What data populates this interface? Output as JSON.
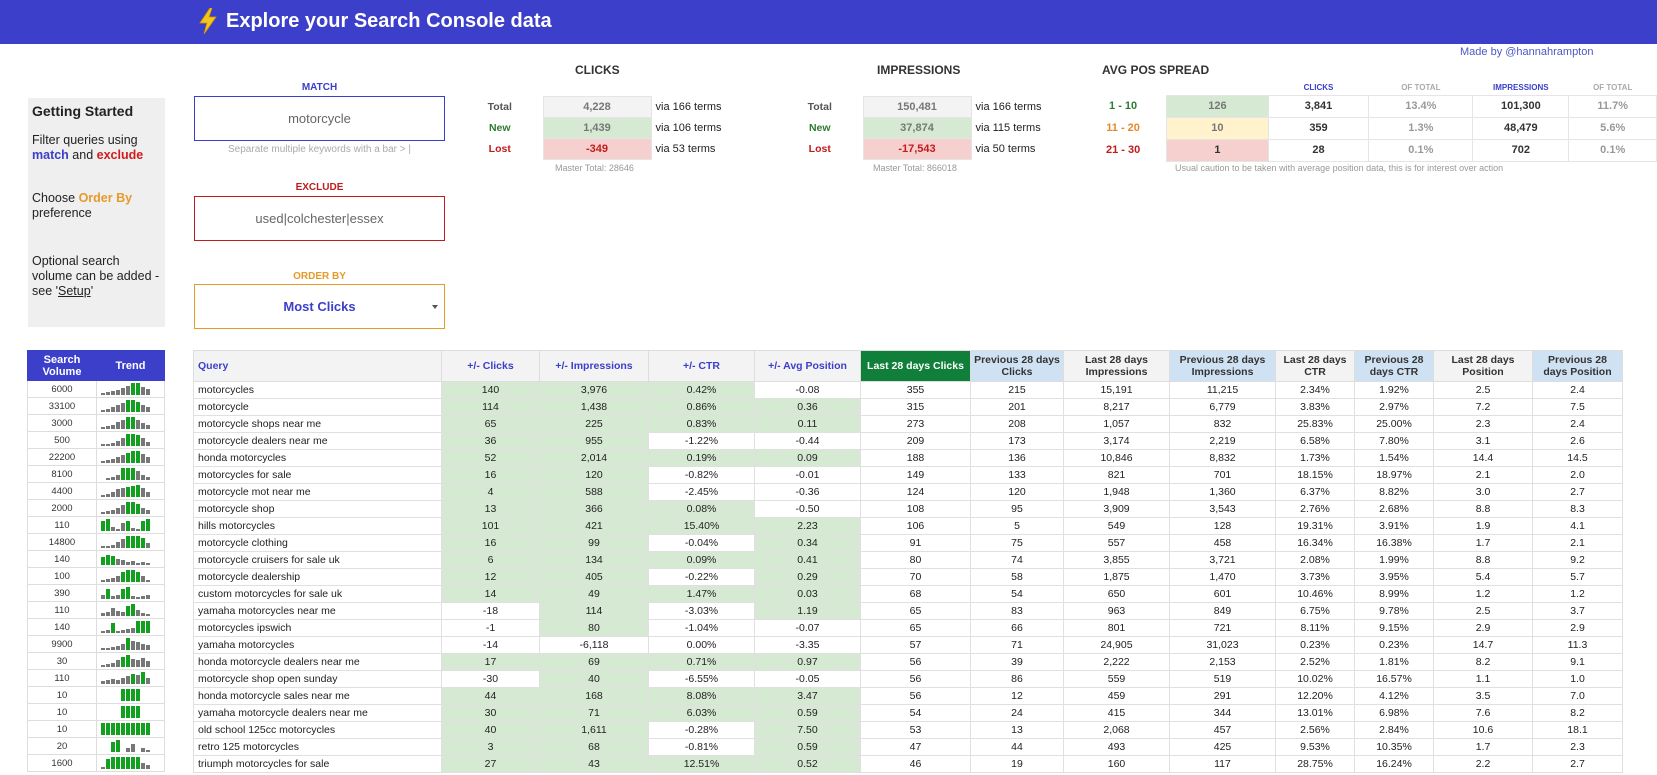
{
  "header": {
    "title": "Explore your Search Console data",
    "icon": "lightning-bolt-icon",
    "brand_color": "#3b3fc9",
    "made_by": "Made by @hannahrampton"
  },
  "getting_started": {
    "heading": "Getting Started",
    "p1_a": "Filter queries using",
    "p1_match": "match",
    "p1_and": " and ",
    "p1_exclude": "exclude",
    "p2_a": "Choose ",
    "p2_order": "Order By",
    "p2_b": "preference",
    "p3_a": "Optional search volume can be added - see '",
    "p3_link": "Setup",
    "p3_b": "'"
  },
  "filters": {
    "match_label": "MATCH",
    "match_value": "motorcycle",
    "match_hint": "Separate multiple keywords with a bar > |",
    "exclude_label": "EXCLUDE",
    "exclude_value": "used|colchester|essex",
    "order_label": "ORDER BY",
    "order_value": "Most Clicks"
  },
  "clicks_summary": {
    "title": "CLICKS",
    "rows": [
      {
        "label": "Total",
        "value": "4,228",
        "terms": "via 166 terms"
      },
      {
        "label": "New",
        "value": "1,439",
        "terms": "via 106 terms"
      },
      {
        "label": "Lost",
        "value": "-349",
        "terms": "via 53 terms"
      }
    ],
    "master_total": "Master Total: 28646"
  },
  "impressions_summary": {
    "title": "IMPRESSIONS",
    "rows": [
      {
        "label": "Total",
        "value": "150,481",
        "terms": "via 166 terms"
      },
      {
        "label": "New",
        "value": "37,874",
        "terms": "via 115 terms"
      },
      {
        "label": "Lost",
        "value": "-17,543",
        "terms": "via 50 terms"
      }
    ],
    "master_total": "Master Total: 866018"
  },
  "avg_pos_spread": {
    "title": "AVG POS SPREAD",
    "headers": [
      "CLICKS",
      "OF TOTAL",
      "IMPRESSIONS",
      "OF TOTAL"
    ],
    "rows": [
      {
        "range": "1 - 10",
        "count": "126",
        "clicks": "3,841",
        "clicks_pct": "13.4%",
        "impr": "101,300",
        "impr_pct": "11.7%"
      },
      {
        "range": "11 - 20",
        "count": "10",
        "clicks": "359",
        "clicks_pct": "1.3%",
        "impr": "48,479",
        "impr_pct": "5.6%"
      },
      {
        "range": "21 - 30",
        "count": "1",
        "clicks": "28",
        "clicks_pct": "0.1%",
        "impr": "702",
        "impr_pct": "0.1%"
      }
    ],
    "caution": "Usual caution to be taken with average position data, this is for interest over action"
  },
  "sv_table": {
    "headers": [
      "Search Volume",
      "Trend"
    ],
    "rows": [
      "6000",
      "33100",
      "3000",
      "500",
      "22200",
      "8100",
      "4400",
      "2000",
      "110",
      "14800",
      "140",
      "100",
      "390",
      "110",
      "140",
      "9900",
      "30",
      "110",
      "10",
      "10",
      "10",
      "20",
      "1600"
    ],
    "trends": [
      [
        2,
        3,
        4,
        5,
        7,
        9,
        12,
        12,
        8,
        6
      ],
      [
        2,
        3,
        5,
        7,
        9,
        12,
        12,
        10,
        7,
        5
      ],
      [
        2,
        3,
        4,
        7,
        9,
        12,
        12,
        9,
        6,
        4
      ],
      [
        1,
        2,
        3,
        5,
        8,
        12,
        12,
        11,
        8,
        4
      ],
      [
        2,
        3,
        4,
        6,
        8,
        10,
        12,
        12,
        9,
        6
      ],
      [
        0,
        2,
        3,
        5,
        12,
        12,
        12,
        9,
        5,
        3
      ],
      [
        2,
        3,
        5,
        8,
        9,
        10,
        11,
        12,
        9,
        5
      ],
      [
        2,
        3,
        4,
        6,
        9,
        12,
        12,
        10,
        6,
        4
      ],
      [
        10,
        12,
        4,
        2,
        8,
        10,
        3,
        2,
        10,
        12
      ],
      [
        1,
        2,
        3,
        6,
        9,
        12,
        12,
        12,
        10,
        5
      ],
      [
        8,
        10,
        9,
        6,
        5,
        3,
        4,
        2,
        3,
        2
      ],
      [
        2,
        3,
        4,
        6,
        10,
        12,
        12,
        10,
        6,
        2
      ],
      [
        4,
        10,
        3,
        4,
        10,
        12,
        3,
        2,
        3,
        4
      ],
      [
        3,
        4,
        8,
        5,
        4,
        10,
        12,
        6,
        3,
        2
      ],
      [
        2,
        3,
        10,
        2,
        3,
        4,
        5,
        12,
        12,
        12
      ],
      [
        1,
        2,
        3,
        4,
        6,
        12,
        9,
        8,
        6,
        5
      ],
      [
        2,
        3,
        4,
        7,
        10,
        12,
        8,
        7,
        9,
        6
      ],
      [
        3,
        4,
        5,
        4,
        6,
        8,
        10,
        9,
        12,
        6
      ],
      [
        0,
        0,
        0,
        0,
        12,
        12,
        12,
        12,
        0,
        0
      ],
      [
        0,
        0,
        0,
        0,
        12,
        12,
        12,
        12,
        0,
        0
      ],
      [
        12,
        12,
        12,
        12,
        12,
        12,
        12,
        12,
        12,
        12
      ],
      [
        0,
        0,
        10,
        12,
        0,
        4,
        8,
        0,
        4,
        2
      ],
      [
        2,
        10,
        12,
        12,
        12,
        12,
        12,
        12,
        6,
        4
      ]
    ],
    "trend_hi_color": "#12a01f"
  },
  "main_table": {
    "headers": [
      "Query",
      "+/- Clicks",
      "+/- Impressions",
      "+/- CTR",
      "+/- Avg Position",
      "Last 28 days Clicks",
      "Previous 28 days Clicks",
      "Last 28 days Impressions",
      "Previous 28 days Impressions",
      "Last 28 days CTR",
      "Previous 28 days CTR",
      "Last 28 days Position",
      "Previous 28 days Position"
    ],
    "rows": [
      [
        "motorcycles",
        "140",
        "3,976",
        "0.42%",
        "-0.08",
        "355",
        "215",
        "15,191",
        "11,215",
        "2.34%",
        "1.92%",
        "2.5",
        "2.4"
      ],
      [
        "motorcycle",
        "114",
        "1,438",
        "0.86%",
        "0.36",
        "315",
        "201",
        "8,217",
        "6,779",
        "3.83%",
        "2.97%",
        "7.2",
        "7.5"
      ],
      [
        "motorcycle shops near me",
        "65",
        "225",
        "0.83%",
        "0.11",
        "273",
        "208",
        "1,057",
        "832",
        "25.83%",
        "25.00%",
        "2.3",
        "2.4"
      ],
      [
        "motorcycle dealers near me",
        "36",
        "955",
        "-1.22%",
        "-0.44",
        "209",
        "173",
        "3,174",
        "2,219",
        "6.58%",
        "7.80%",
        "3.1",
        "2.6"
      ],
      [
        "honda motorcycles",
        "52",
        "2,014",
        "0.19%",
        "0.09",
        "188",
        "136",
        "10,846",
        "8,832",
        "1.73%",
        "1.54%",
        "14.4",
        "14.5"
      ],
      [
        "motorcycles for sale",
        "16",
        "120",
        "-0.82%",
        "-0.01",
        "149",
        "133",
        "821",
        "701",
        "18.15%",
        "18.97%",
        "2.1",
        "2.0"
      ],
      [
        "motorcycle mot near me",
        "4",
        "588",
        "-2.45%",
        "-0.36",
        "124",
        "120",
        "1,948",
        "1,360",
        "6.37%",
        "8.82%",
        "3.0",
        "2.7"
      ],
      [
        "motorcycle shop",
        "13",
        "366",
        "0.08%",
        "-0.50",
        "108",
        "95",
        "3,909",
        "3,543",
        "2.76%",
        "2.68%",
        "8.8",
        "8.3"
      ],
      [
        "hills motorcycles",
        "101",
        "421",
        "15.40%",
        "2.23",
        "106",
        "5",
        "549",
        "128",
        "19.31%",
        "3.91%",
        "1.9",
        "4.1"
      ],
      [
        "motorcycle clothing",
        "16",
        "99",
        "-0.04%",
        "0.34",
        "91",
        "75",
        "557",
        "458",
        "16.34%",
        "16.38%",
        "1.7",
        "2.1"
      ],
      [
        "motorcycle cruisers for sale uk",
        "6",
        "134",
        "0.09%",
        "0.41",
        "80",
        "74",
        "3,855",
        "3,721",
        "2.08%",
        "1.99%",
        "8.8",
        "9.2"
      ],
      [
        "motorcycle dealership",
        "12",
        "405",
        "-0.22%",
        "0.29",
        "70",
        "58",
        "1,875",
        "1,470",
        "3.73%",
        "3.95%",
        "5.4",
        "5.7"
      ],
      [
        "custom motorcycles for sale uk",
        "14",
        "49",
        "1.47%",
        "0.03",
        "68",
        "54",
        "650",
        "601",
        "10.46%",
        "8.99%",
        "1.2",
        "1.2"
      ],
      [
        "yamaha motorcycles near me",
        "-18",
        "114",
        "-3.03%",
        "1.19",
        "65",
        "83",
        "963",
        "849",
        "6.75%",
        "9.78%",
        "2.5",
        "3.7"
      ],
      [
        "motorcycles ipswich",
        "-1",
        "80",
        "-1.04%",
        "-0.07",
        "65",
        "66",
        "801",
        "721",
        "8.11%",
        "9.15%",
        "2.9",
        "2.9"
      ],
      [
        "yamaha motorcycles",
        "-14",
        "-6,118",
        "0.00%",
        "-3.35",
        "57",
        "71",
        "24,905",
        "31,023",
        "0.23%",
        "0.23%",
        "14.7",
        "11.3"
      ],
      [
        "honda motorcycle dealers near me",
        "17",
        "69",
        "0.71%",
        "0.97",
        "56",
        "39",
        "2,222",
        "2,153",
        "2.52%",
        "1.81%",
        "8.2",
        "9.1"
      ],
      [
        "motorcycle shop open sunday",
        "-30",
        "40",
        "-6.55%",
        "-0.05",
        "56",
        "86",
        "559",
        "519",
        "10.02%",
        "16.57%",
        "1.1",
        "1.0"
      ],
      [
        "honda motorcycle sales near me",
        "44",
        "168",
        "8.08%",
        "3.47",
        "56",
        "12",
        "459",
        "291",
        "12.20%",
        "4.12%",
        "3.5",
        "7.0"
      ],
      [
        "yamaha motorcycle dealers near me",
        "30",
        "71",
        "6.03%",
        "0.59",
        "54",
        "24",
        "415",
        "344",
        "13.01%",
        "6.98%",
        "7.6",
        "8.2"
      ],
      [
        "old school 125cc motorcycles",
        "40",
        "1,611",
        "-0.28%",
        "7.50",
        "53",
        "13",
        "2,068",
        "457",
        "2.56%",
        "2.84%",
        "10.6",
        "18.1"
      ],
      [
        "retro 125 motorcycles",
        "3",
        "68",
        "-0.81%",
        "0.59",
        "47",
        "44",
        "493",
        "425",
        "9.53%",
        "10.35%",
        "1.7",
        "2.3"
      ],
      [
        "triumph motorcycles for sale",
        "27",
        "43",
        "12.51%",
        "0.52",
        "46",
        "19",
        "160",
        "117",
        "28.75%",
        "16.24%",
        "2.2",
        "2.7"
      ]
    ],
    "positive_fill": "#d6ead3",
    "highlight_header_color": "#0f7f3a"
  }
}
